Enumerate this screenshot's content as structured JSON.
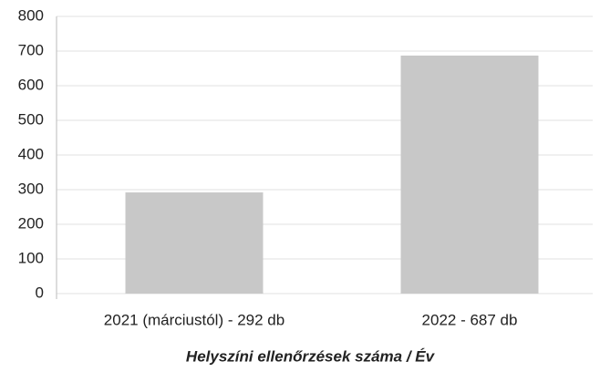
{
  "chart_data": {
    "type": "bar",
    "title": "Helyszíni ellenőrzések száma / Év",
    "categories": [
      "2021 (márciustól) - 292 db",
      "2022 - 687 db"
    ],
    "values": [
      292,
      687
    ],
    "color": "#c8c8c8",
    "ylim": [
      0,
      800
    ],
    "yticks": [
      0,
      100,
      200,
      300,
      400,
      500,
      600,
      700,
      800
    ],
    "grid": true
  }
}
